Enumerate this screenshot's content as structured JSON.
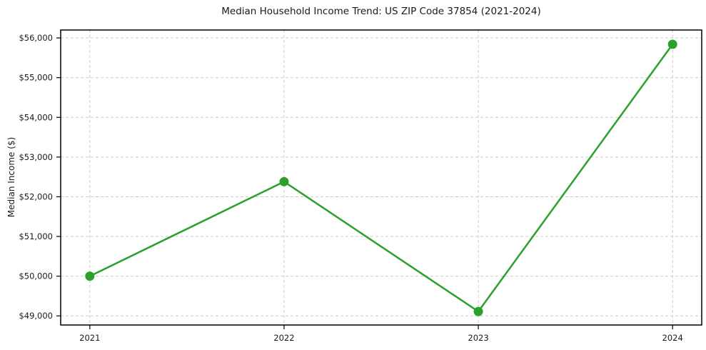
{
  "figure": {
    "title": "Median Household Income Trend: US ZIP Code 37854 (2021-2024)",
    "ylabel": "Median Income ($)"
  },
  "chart_data": {
    "type": "line",
    "title": "Median Household Income Trend: US ZIP Code 37854 (2021-2024)",
    "xlabel": "",
    "ylabel": "Median Income ($)",
    "x": [
      2021,
      2022,
      2023,
      2024
    ],
    "x_tick_labels": [
      "2021",
      "2022",
      "2023",
      "2024"
    ],
    "series": [
      {
        "name": "Median Household Income",
        "values": [
          50000,
          52380,
          49110,
          55840
        ]
      }
    ],
    "y_ticks": [
      49000,
      50000,
      51000,
      52000,
      53000,
      54000,
      55000,
      56000
    ],
    "y_tick_labels": [
      "$49,000",
      "$50,000",
      "$51,000",
      "$52,000",
      "$53,000",
      "$54,000",
      "$55,000",
      "$56,000"
    ],
    "xlim": [
      2020.85,
      2024.15
    ],
    "ylim": [
      48770,
      56200
    ],
    "grid": true,
    "grid_style": "dashed",
    "legend": "none",
    "colors": {
      "line": "#2ca02c",
      "marker": "#2ca02c",
      "grid": "#cccccc",
      "spine": "#000000",
      "text": "#1a1a1a",
      "background": "#ffffff"
    }
  }
}
